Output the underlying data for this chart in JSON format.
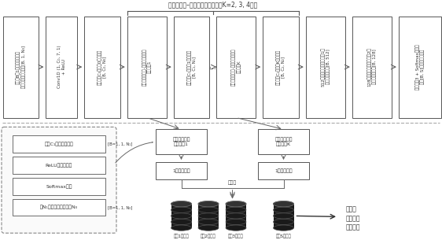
{
  "title": "残差「挤压–激励」选通模块组（K=2, 3, 4等）",
  "top_boxes": [
    {
      "id": 0,
      "lines": [
        "一批次B个1维高光谱数据样",
        "本作为输入，尺寸为[B, 1, N₀]"
      ]
    },
    {
      "id": 1,
      "lines": [
        "Conv1D (1, C₀, 7, 1)",
        "+ ReLU"
      ]
    },
    {
      "id": 2,
      "lines": [
        "通道数为C₀的特征0，尺寸为",
        "[B, C₀, N₀]"
      ]
    },
    {
      "id": 3,
      "lines": [
        "一堆残差「挤压-激励」特征通道",
        "选通模块1"
      ]
    },
    {
      "id": 4,
      "lines": [
        "通道数为C₁的特征1，尺寸为",
        "[B, C₁, N₁]"
      ]
    },
    {
      "id": 5,
      "lines": [
        "一堆残差「挤压-激励」特征通道",
        "选通模块K"
      ]
    },
    {
      "id": 6,
      "lines": [
        "通道数为C₂的特征K，尺寸为",
        "[B, C₂, N₂]"
      ]
    },
    {
      "id": 7,
      "lines": [
        "512个连接单元的全连接层1，",
        "输出特征尺寸为[B, 512]"
      ]
    },
    {
      "id": 8,
      "lines": [
        "128个连接单元的全连接层2，",
        "输出特征尺寸为[B, 128]"
      ]
    },
    {
      "id": 9,
      "lines": [
        "全连接层3 + Softmax激励，",
        "输出[B, S]大小的预测概率"
      ]
    }
  ],
  "inner_box_labels": [
    "沿着C₁维度取最大值",
    "ReLU非线性函数",
    "Softmax函数",
    "将N₁值填回到原始长度N₀"
  ],
  "tag1": "[B=1, 1, N₁]",
  "tag2": "[B=1, 1, N₀]",
  "train1_lines": [
    "训练样本概率",
    "生成模块1"
  ],
  "trainK_lines": [
    "训练样本概率",
    "生成模块K"
  ],
  "prob_vec_label": "1维概率向量",
  "avg_label": "求平均",
  "db_labels": [
    "类别1收集器",
    "类别2收集器",
    "类别3收集器",
    "类别S收集器"
  ],
  "forest_lines": [
    "高光谱",
    "波段选择",
    "独立森林"
  ],
  "bg_color": "#ffffff",
  "box_edge": "#555555",
  "text_color": "#333333",
  "arrow_color": "#666666",
  "dashed_edge": "#888888"
}
